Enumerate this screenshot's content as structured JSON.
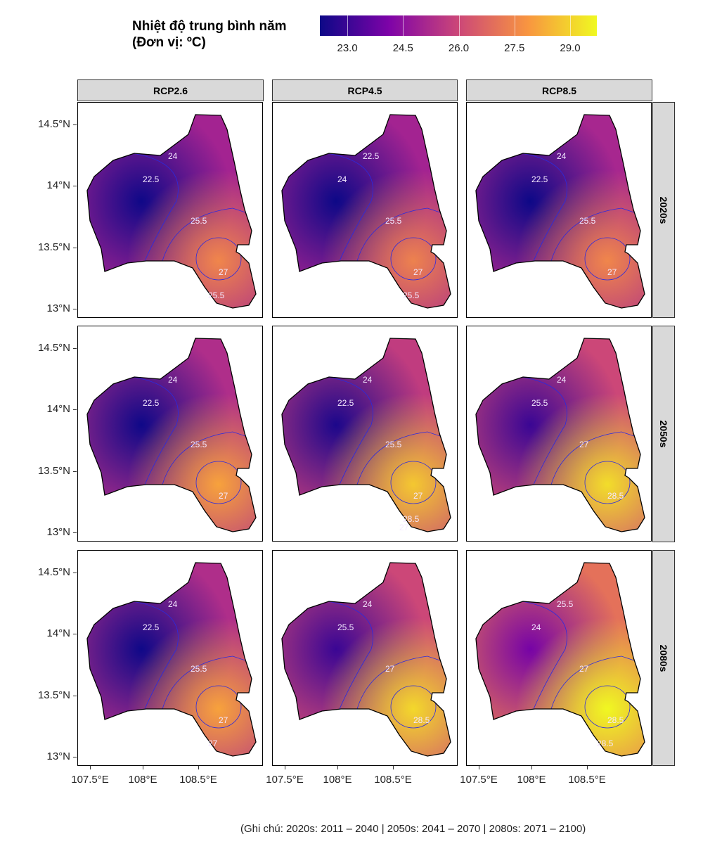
{
  "chart_data": {
    "type": "heatmap",
    "title": "Nhiệt độ trung bình năm",
    "subtitle": "(Đơn vị: ºC)",
    "colorscale": "plasma",
    "colors": [
      "#0d0887",
      "#7e03a8",
      "#cc4778",
      "#f89540",
      "#f0f921"
    ],
    "legend": {
      "range": [
        22.26,
        29.72
      ],
      "ticks": [
        "23.0",
        "24.5",
        "26.0",
        "27.5",
        "29.0"
      ],
      "tick_values": [
        23.0,
        24.5,
        26.0,
        27.5,
        29.0
      ],
      "placement": "top"
    },
    "columns": [
      "RCP2.6",
      "RCP4.5",
      "RCP8.5"
    ],
    "rows": [
      "2020s",
      "2050s",
      "2080s"
    ],
    "y_ticks": [
      "14.5°N",
      "14°N",
      "13.5°N",
      "13°N"
    ],
    "y_tick_values": [
      14.5,
      14.0,
      13.5,
      13.0
    ],
    "x_ticks": [
      "107.5°E",
      "108°E",
      "108.5°E"
    ],
    "x_tick_values": [
      107.5,
      108.0,
      108.5
    ],
    "xlim": [
      107.38,
      109.1
    ],
    "ylim": [
      12.93,
      14.68
    ],
    "panels": [
      {
        "row": "2020s",
        "col": "RCP2.6",
        "min": 22.3,
        "base": 25.0,
        "max": 27.5,
        "contour_labels": [
          "24",
          "22.5",
          "25.5",
          "27",
          "25.5"
        ]
      },
      {
        "row": "2020s",
        "col": "RCP4.5",
        "min": 22.1,
        "base": 25.0,
        "max": 27.4,
        "contour_labels": [
          "22.5",
          "24",
          "25.5",
          "27",
          "25.5"
        ]
      },
      {
        "row": "2020s",
        "col": "RCP8.5",
        "min": 22.2,
        "base": 25.1,
        "max": 27.5,
        "contour_labels": [
          "24",
          "22.5",
          "25.5",
          "27"
        ]
      },
      {
        "row": "2050s",
        "col": "RCP2.6",
        "min": 22.3,
        "base": 25.3,
        "max": 28.1,
        "contour_labels": [
          "24",
          "22.5",
          "25.5",
          "27"
        ]
      },
      {
        "row": "2050s",
        "col": "RCP4.5",
        "min": 22.5,
        "base": 25.7,
        "max": 28.8,
        "contour_labels": [
          "24",
          "22.5",
          "25.5",
          "27",
          "28.5",
          "27"
        ]
      },
      {
        "row": "2050s",
        "col": "RCP8.5",
        "min": 23.0,
        "base": 26.0,
        "max": 29.2,
        "contour_labels": [
          "24",
          "25.5",
          "27",
          "28.5"
        ]
      },
      {
        "row": "2080s",
        "col": "RCP2.6",
        "min": 22.3,
        "base": 25.3,
        "max": 28.1,
        "contour_labels": [
          "24",
          "22.5",
          "25.5",
          "27",
          "27"
        ]
      },
      {
        "row": "2080s",
        "col": "RCP4.5",
        "min": 23.0,
        "base": 26.0,
        "max": 29.1,
        "contour_labels": [
          "24",
          "25.5",
          "27",
          "28.5"
        ]
      },
      {
        "row": "2080s",
        "col": "RCP8.5",
        "min": 24.0,
        "base": 27.0,
        "max": 29.7,
        "contour_labels": [
          "25.5",
          "24",
          "27",
          "28.5",
          "28.5"
        ]
      }
    ]
  },
  "note": "(Ghi chú: 2020s: 2011 – 2040 | 2050s: 2041 – 2070 | 2080s: 2071 – 2100)"
}
